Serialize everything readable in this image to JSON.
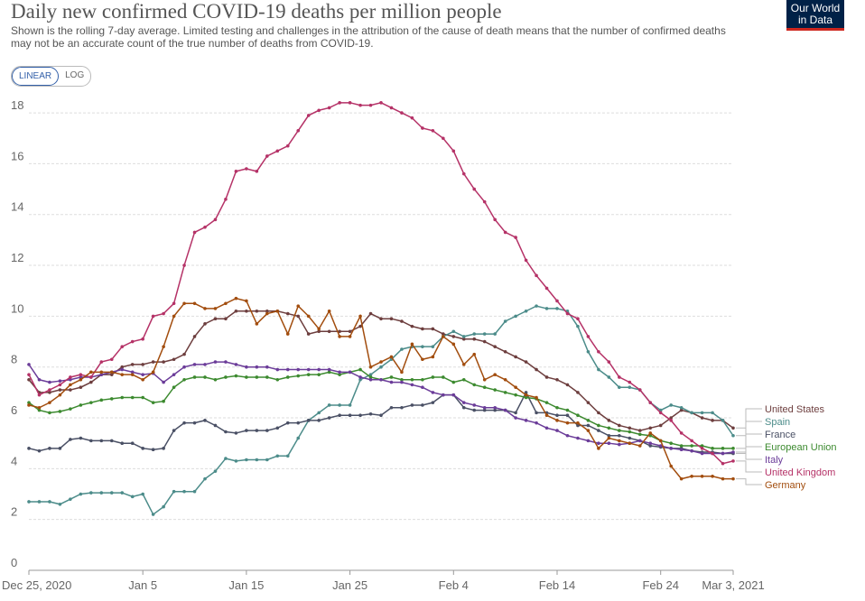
{
  "header": {
    "title": "Daily new confirmed COVID-19 deaths per million people",
    "subtitle": "Shown is the rolling 7-day average. Limited testing and challenges in the attribution of the cause of death means that the number of confirmed deaths may not be an accurate count of the true number of deaths from COVID-19.",
    "logo_line1": "Our World",
    "logo_line2": "in Data"
  },
  "controls": {
    "linear_label": "LINEAR",
    "log_label": "LOG",
    "active": "linear"
  },
  "chart_data": {
    "type": "line",
    "title": "Daily new confirmed COVID-19 deaths per million people",
    "x_ticks": [
      "Dec 25, 2020",
      "Jan 5",
      "Jan 15",
      "Jan 25",
      "Feb 4",
      "Feb 14",
      "Feb 24",
      "Mar 3, 2021"
    ],
    "x_tick_days": [
      0,
      11,
      21,
      31,
      41,
      51,
      61,
      68
    ],
    "x_range_days": [
      0,
      68
    ],
    "y_ticks": [
      0,
      2,
      4,
      6,
      8,
      10,
      12,
      14,
      16,
      18
    ],
    "ylim": [
      0,
      18.5
    ],
    "grid": true,
    "legend_placement": "right",
    "series": [
      {
        "name": "United States",
        "color": "#6d3e3e",
        "values": [
          7.5,
          7.0,
          7.0,
          7.1,
          7.1,
          7.2,
          7.4,
          7.7,
          7.7,
          8.0,
          8.1,
          8.1,
          8.2,
          8.2,
          8.3,
          8.5,
          9.2,
          9.7,
          9.9,
          9.9,
          10.2,
          10.2,
          10.2,
          10.2,
          10.2,
          10.1,
          10.0,
          9.3,
          9.4,
          9.4,
          9.4,
          9.4,
          9.6,
          10.1,
          9.9,
          9.9,
          9.8,
          9.6,
          9.5,
          9.5,
          9.3,
          9.2,
          9.1,
          9.1,
          9.0,
          8.8,
          8.6,
          8.4,
          8.2,
          7.9,
          7.6,
          7.5,
          7.3,
          7.0,
          6.6,
          6.2,
          5.9,
          5.7,
          5.6,
          5.5,
          5.6,
          5.7,
          6.0,
          6.3,
          6.2,
          6.0,
          5.9,
          5.9,
          5.6
        ]
      },
      {
        "name": "Spain",
        "color": "#4c8c8a",
        "values": [
          2.7,
          2.7,
          2.7,
          2.6,
          2.8,
          3.0,
          3.05,
          3.05,
          3.05,
          3.05,
          2.9,
          3.0,
          2.2,
          2.5,
          3.1,
          3.1,
          3.1,
          3.6,
          3.9,
          4.4,
          4.3,
          4.35,
          4.35,
          4.35,
          4.5,
          4.5,
          5.2,
          5.9,
          6.2,
          6.5,
          6.5,
          6.5,
          7.5,
          7.7,
          8.0,
          8.3,
          8.7,
          8.8,
          8.8,
          8.8,
          9.2,
          9.4,
          9.2,
          9.3,
          9.3,
          9.3,
          9.8,
          10.0,
          10.2,
          10.4,
          10.3,
          10.3,
          10.2,
          9.6,
          8.6,
          7.9,
          7.6,
          7.2,
          7.2,
          7.1,
          6.6,
          6.3,
          6.5,
          6.4,
          6.2,
          6.2,
          6.2,
          5.9,
          5.3
        ]
      },
      {
        "name": "France",
        "color": "#4a5065",
        "values": [
          4.8,
          4.7,
          4.8,
          4.8,
          5.15,
          5.2,
          5.1,
          5.1,
          5.1,
          5.0,
          5.0,
          4.8,
          4.75,
          4.8,
          5.5,
          5.8,
          5.8,
          5.9,
          5.7,
          5.45,
          5.4,
          5.5,
          5.5,
          5.5,
          5.6,
          5.8,
          5.8,
          5.9,
          5.9,
          6.0,
          6.1,
          6.1,
          6.1,
          6.15,
          6.1,
          6.4,
          6.4,
          6.5,
          6.5,
          6.6,
          6.9,
          6.9,
          6.4,
          6.3,
          6.3,
          6.3,
          6.3,
          6.2,
          7.0,
          6.2,
          6.2,
          6.1,
          6.1,
          5.7,
          5.7,
          5.5,
          5.3,
          5.3,
          5.2,
          5.1,
          4.9,
          4.85,
          4.8,
          4.8,
          4.7,
          4.65,
          4.65,
          4.6,
          4.6
        ]
      },
      {
        "name": "European Union",
        "color": "#3c8a2f",
        "values": [
          6.6,
          6.3,
          6.2,
          6.25,
          6.35,
          6.5,
          6.6,
          6.7,
          6.75,
          6.8,
          6.8,
          6.8,
          6.6,
          6.65,
          7.2,
          7.5,
          7.6,
          7.6,
          7.5,
          7.6,
          7.65,
          7.6,
          7.6,
          7.6,
          7.5,
          7.6,
          7.65,
          7.7,
          7.7,
          7.8,
          7.7,
          7.8,
          7.9,
          7.6,
          7.5,
          7.6,
          7.5,
          7.5,
          7.5,
          7.6,
          7.6,
          7.4,
          7.5,
          7.3,
          7.2,
          7.1,
          7.0,
          6.9,
          6.8,
          6.75,
          6.6,
          6.4,
          6.3,
          6.1,
          5.9,
          5.7,
          5.6,
          5.5,
          5.45,
          5.35,
          5.3,
          5.1,
          5.0,
          4.9,
          4.9,
          4.9,
          4.8,
          4.8,
          4.8
        ]
      },
      {
        "name": "Italy",
        "color": "#6b3c99",
        "values": [
          8.1,
          7.5,
          7.4,
          7.45,
          7.5,
          7.6,
          7.6,
          7.7,
          7.8,
          7.9,
          7.8,
          7.7,
          7.75,
          7.4,
          7.7,
          8.0,
          8.1,
          8.1,
          8.2,
          8.2,
          8.1,
          8.0,
          8.0,
          8.0,
          7.9,
          7.9,
          7.9,
          7.9,
          7.9,
          7.9,
          7.8,
          7.8,
          7.6,
          7.5,
          7.5,
          7.4,
          7.4,
          7.3,
          7.2,
          7.0,
          6.9,
          6.9,
          6.6,
          6.5,
          6.4,
          6.4,
          6.3,
          6.0,
          5.9,
          5.8,
          5.6,
          5.5,
          5.3,
          5.2,
          5.1,
          5.0,
          5.0,
          4.95,
          5.0,
          5.1,
          5.0,
          4.9,
          4.8,
          4.75,
          4.7,
          4.6,
          4.6,
          4.6,
          4.65
        ]
      },
      {
        "name": "United Kingdom",
        "color": "#b53267",
        "values": [
          7.7,
          6.9,
          7.1,
          7.3,
          7.6,
          7.7,
          7.6,
          8.2,
          8.3,
          8.8,
          9.0,
          9.1,
          10.0,
          10.1,
          10.5,
          12.0,
          13.3,
          13.5,
          13.8,
          14.6,
          15.7,
          15.8,
          15.7,
          16.3,
          16.5,
          16.7,
          17.3,
          17.9,
          18.1,
          18.2,
          18.4,
          18.4,
          18.3,
          18.3,
          18.4,
          18.2,
          18.0,
          17.8,
          17.4,
          17.3,
          17.0,
          16.5,
          15.6,
          15.0,
          14.5,
          13.8,
          13.3,
          13.1,
          12.2,
          11.6,
          11.1,
          10.6,
          10.1,
          9.9,
          9.2,
          8.6,
          8.2,
          7.6,
          7.4,
          7.1,
          6.6,
          6.2,
          5.9,
          5.4,
          5.1,
          4.8,
          4.6,
          4.2,
          4.3
        ]
      },
      {
        "name": "Germany",
        "color": "#a24d0e",
        "values": [
          6.5,
          6.4,
          6.6,
          6.9,
          7.3,
          7.5,
          7.8,
          7.8,
          7.8,
          7.7,
          7.7,
          7.5,
          7.8,
          8.8,
          10.0,
          10.5,
          10.5,
          10.3,
          10.3,
          10.5,
          10.7,
          10.6,
          9.7,
          10.1,
          10.2,
          9.3,
          10.4,
          10.0,
          9.5,
          10.2,
          9.2,
          9.2,
          10.0,
          8.0,
          8.2,
          8.4,
          7.8,
          8.9,
          8.3,
          8.4,
          9.2,
          8.9,
          8.1,
          8.5,
          7.5,
          7.7,
          7.5,
          7.2,
          6.9,
          6.8,
          6.1,
          5.9,
          5.8,
          5.8,
          5.5,
          4.8,
          5.2,
          5.1,
          5.0,
          4.9,
          5.4,
          5.1,
          4.1,
          3.6,
          3.7,
          3.7,
          3.7,
          3.6,
          3.6
        ]
      }
    ]
  }
}
